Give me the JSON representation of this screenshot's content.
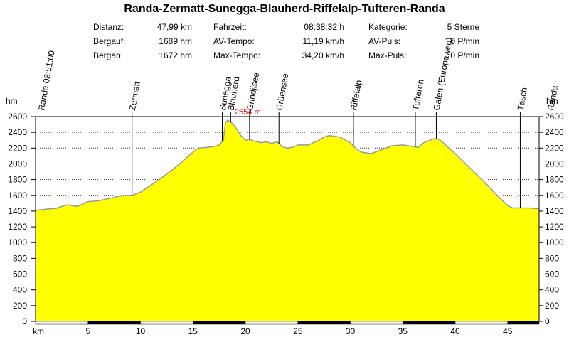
{
  "title": "Randa-Zermatt-Sunegga-Blauherd-Riffelalp-Tufteren-Randa",
  "stats": [
    {
      "label": "Distanz:",
      "value": "47,99 km"
    },
    {
      "label": "Bergauf:",
      "value": "1689 hm"
    },
    {
      "label": "Bergab:",
      "value": "1672 hm"
    },
    {
      "label": "Fahrzeit:",
      "value": "08:38:32 h"
    },
    {
      "label": "AV-Tempo:",
      "value": "11,19 km/h"
    },
    {
      "label": "Max-Tempo:",
      "value": "34,20 km/h"
    },
    {
      "label": "Kategorie:",
      "value": "5 Sterne"
    },
    {
      "label": "AV-Puls:",
      "value": "0 P/min"
    },
    {
      "label": "Max-Puls:",
      "value": "0 P/min"
    }
  ],
  "colors": {
    "fill": "#ffff00",
    "outline": "#999999",
    "grid": "#000000",
    "maxlabel": "#cc0000"
  },
  "chart_data": {
    "type": "area",
    "ylabel": "hm",
    "xlabel": "km",
    "xlim": [
      0,
      48
    ],
    "ylim": [
      0,
      2600
    ],
    "yticks": [
      0,
      200,
      400,
      600,
      800,
      1000,
      1200,
      1400,
      1600,
      1800,
      2000,
      2200,
      2400,
      2600
    ],
    "xticks": [
      5,
      10,
      15,
      20,
      25,
      30,
      35,
      40,
      45
    ],
    "max_label": "2554 m",
    "max_point": [
      18.3,
      2554
    ],
    "waypoints": [
      {
        "name": "Randa 08:51:00",
        "km": 0
      },
      {
        "name": "Zermatt",
        "km": 9.2
      },
      {
        "name": "Sunegga",
        "km": 17.8
      },
      {
        "name": "Blauherd",
        "km": 18.6
      },
      {
        "name": "Grindjisee",
        "km": 20.4
      },
      {
        "name": "Grüensee",
        "km": 23.2
      },
      {
        "name": "Riffelalp",
        "km": 30.3
      },
      {
        "name": "Tufteren",
        "km": 36.2
      },
      {
        "name": "Galen (Europaweg)",
        "km": 38.2
      },
      {
        "name": "Täsch",
        "km": 46.2
      },
      {
        "name": "Randa",
        "km": 48
      }
    ],
    "x": [
      0,
      1,
      2,
      2.5,
      3,
      3.5,
      4,
      4.5,
      5,
      6,
      7,
      8,
      9.2,
      10,
      11,
      12,
      13,
      14,
      15,
      15.5,
      16,
      17,
      17.5,
      17.9,
      18.1,
      18.3,
      18.6,
      19,
      19.5,
      20,
      20.4,
      20.8,
      21.5,
      22,
      22.5,
      23,
      23.5,
      24,
      24.5,
      25,
      26,
      27,
      27.5,
      28,
      29,
      30,
      30.5,
      31,
      32,
      33,
      34,
      35,
      36,
      36.5,
      37,
      38,
      38.5,
      39,
      40,
      41,
      42,
      43,
      44,
      45,
      45.5,
      46,
      47,
      48
    ],
    "y": [
      1410,
      1425,
      1435,
      1460,
      1480,
      1470,
      1460,
      1490,
      1520,
      1530,
      1560,
      1590,
      1600,
      1640,
      1730,
      1820,
      1920,
      2030,
      2150,
      2200,
      2205,
      2220,
      2240,
      2300,
      2520,
      2554,
      2530,
      2480,
      2370,
      2300,
      2310,
      2290,
      2270,
      2280,
      2260,
      2280,
      2220,
      2200,
      2210,
      2240,
      2240,
      2300,
      2340,
      2360,
      2340,
      2270,
      2200,
      2150,
      2130,
      2180,
      2230,
      2240,
      2220,
      2210,
      2270,
      2320,
      2310,
      2250,
      2130,
      2000,
      1870,
      1740,
      1600,
      1470,
      1440,
      1440,
      1440,
      1430
    ]
  }
}
